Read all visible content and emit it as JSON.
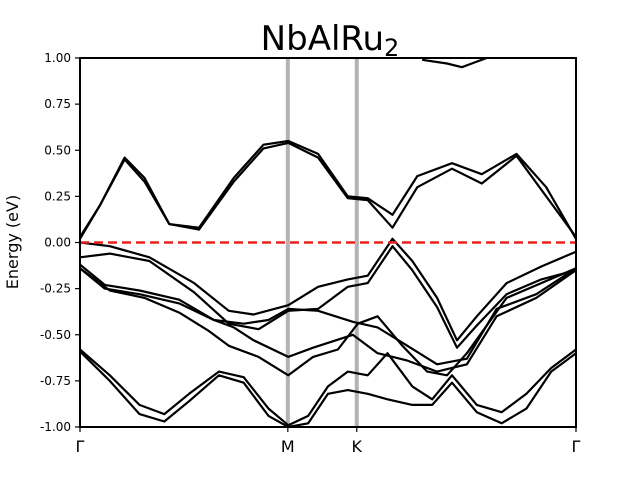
{
  "chart_data": {
    "type": "line",
    "title": "NbAlRu",
    "title_subscript": "2",
    "ylabel": "Energy (eV)",
    "xlabel": "",
    "ylim": [
      -1.0,
      1.0
    ],
    "xlim": [
      0.0,
      1.0
    ],
    "yticks": [
      "1.00",
      "0.75",
      "0.50",
      "0.25",
      "0.00",
      "-0.25",
      "-0.50",
      "-0.75",
      "-1.00"
    ],
    "ytick_values": [
      1.0,
      0.75,
      0.5,
      0.25,
      0.0,
      -0.25,
      -0.5,
      -0.75,
      -1.0
    ],
    "kpoints": [
      {
        "label": "Γ",
        "x": 0.0
      },
      {
        "label": "M",
        "x": 0.419
      },
      {
        "label": "K",
        "x": 0.558
      },
      {
        "label": "Γ",
        "x": 1.0
      }
    ],
    "grid": false,
    "fermi_level": {
      "value": 0.0,
      "color": "#e8211c",
      "style": "dashed"
    },
    "kpoint_line_color": "#b3b3b3",
    "band_color": "#000000",
    "bands": [
      {
        "name": "",
        "points": [
          [
            0,
            0.02
          ],
          [
            0.04,
            0.2
          ],
          [
            0.09,
            0.46
          ],
          [
            0.13,
            0.35
          ],
          [
            0.18,
            0.1
          ],
          [
            0.24,
            0.08
          ],
          [
            0.31,
            0.35
          ],
          [
            0.37,
            0.53
          ],
          [
            0.42,
            0.55
          ],
          [
            0.48,
            0.48
          ],
          [
            0.54,
            0.25
          ],
          [
            0.58,
            0.24
          ],
          [
            0.63,
            0.15
          ],
          [
            0.68,
            0.36
          ],
          [
            0.75,
            0.43
          ],
          [
            0.81,
            0.37
          ],
          [
            0.88,
            0.48
          ],
          [
            0.94,
            0.3
          ],
          [
            1,
            0.02
          ]
        ]
      },
      {
        "name": "",
        "points": [
          [
            0,
            0.03
          ],
          [
            0.04,
            0.2
          ],
          [
            0.09,
            0.45
          ],
          [
            0.13,
            0.33
          ],
          [
            0.18,
            0.1
          ],
          [
            0.24,
            0.07
          ],
          [
            0.31,
            0.33
          ],
          [
            0.37,
            0.51
          ],
          [
            0.42,
            0.54
          ],
          [
            0.48,
            0.46
          ],
          [
            0.54,
            0.24
          ],
          [
            0.58,
            0.23
          ],
          [
            0.63,
            0.08
          ],
          [
            0.68,
            0.3
          ],
          [
            0.75,
            0.4
          ],
          [
            0.81,
            0.32
          ],
          [
            0.88,
            0.47
          ],
          [
            0.94,
            0.25
          ],
          [
            1,
            0.03
          ]
        ]
      },
      {
        "name": "",
        "points": [
          [
            0,
            0.0
          ],
          [
            0.06,
            -0.02
          ],
          [
            0.14,
            -0.08
          ],
          [
            0.23,
            -0.22
          ],
          [
            0.3,
            -0.37
          ],
          [
            0.35,
            -0.39
          ],
          [
            0.42,
            -0.34
          ],
          [
            0.48,
            -0.24
          ],
          [
            0.54,
            -0.2
          ],
          [
            0.58,
            -0.18
          ],
          [
            0.63,
            0.02
          ],
          [
            0.67,
            -0.1
          ],
          [
            0.72,
            -0.3
          ],
          [
            0.76,
            -0.53
          ],
          [
            0.8,
            -0.4
          ],
          [
            0.86,
            -0.22
          ],
          [
            0.93,
            -0.13
          ],
          [
            1,
            -0.05
          ]
        ]
      },
      {
        "name": "",
        "points": [
          [
            0,
            -0.08
          ],
          [
            0.06,
            -0.06
          ],
          [
            0.14,
            -0.1
          ],
          [
            0.23,
            -0.27
          ],
          [
            0.3,
            -0.44
          ],
          [
            0.36,
            -0.47
          ],
          [
            0.42,
            -0.37
          ],
          [
            0.48,
            -0.36
          ],
          [
            0.54,
            -0.24
          ],
          [
            0.58,
            -0.22
          ],
          [
            0.63,
            -0.02
          ],
          [
            0.67,
            -0.15
          ],
          [
            0.72,
            -0.35
          ],
          [
            0.76,
            -0.57
          ],
          [
            0.8,
            -0.45
          ],
          [
            0.86,
            -0.28
          ],
          [
            0.93,
            -0.2
          ],
          [
            1,
            -0.15
          ]
        ]
      },
      {
        "name": "",
        "points": [
          [
            0,
            -0.14
          ],
          [
            0.05,
            -0.25
          ],
          [
            0.12,
            -0.28
          ],
          [
            0.2,
            -0.33
          ],
          [
            0.27,
            -0.42
          ],
          [
            0.33,
            -0.44
          ],
          [
            0.38,
            -0.42
          ],
          [
            0.42,
            -0.36
          ],
          [
            0.48,
            -0.37
          ],
          [
            0.55,
            -0.43
          ],
          [
            0.6,
            -0.46
          ],
          [
            0.66,
            -0.56
          ],
          [
            0.72,
            -0.66
          ],
          [
            0.78,
            -0.63
          ],
          [
            0.84,
            -0.36
          ],
          [
            0.92,
            -0.28
          ],
          [
            1,
            -0.14
          ]
        ]
      },
      {
        "name": "",
        "points": [
          [
            0,
            -0.12
          ],
          [
            0.05,
            -0.23
          ],
          [
            0.12,
            -0.26
          ],
          [
            0.2,
            -0.31
          ],
          [
            0.27,
            -0.42
          ],
          [
            0.31,
            -0.46
          ],
          [
            0.35,
            -0.53
          ],
          [
            0.42,
            -0.62
          ],
          [
            0.47,
            -0.57
          ],
          [
            0.55,
            -0.5
          ],
          [
            0.6,
            -0.6
          ],
          [
            0.66,
            -0.64
          ],
          [
            0.72,
            -0.7
          ],
          [
            0.78,
            -0.66
          ],
          [
            0.84,
            -0.4
          ],
          [
            0.92,
            -0.3
          ],
          [
            1,
            -0.15
          ]
        ]
      },
      {
        "name": "",
        "points": [
          [
            0,
            -0.14
          ],
          [
            0.06,
            -0.26
          ],
          [
            0.13,
            -0.3
          ],
          [
            0.2,
            -0.38
          ],
          [
            0.26,
            -0.48
          ],
          [
            0.3,
            -0.56
          ],
          [
            0.36,
            -0.62
          ],
          [
            0.42,
            -0.72
          ],
          [
            0.47,
            -0.62
          ],
          [
            0.52,
            -0.58
          ],
          [
            0.56,
            -0.44
          ],
          [
            0.6,
            -0.4
          ],
          [
            0.65,
            -0.56
          ],
          [
            0.7,
            -0.7
          ],
          [
            0.74,
            -0.72
          ],
          [
            0.78,
            -0.6
          ],
          [
            0.86,
            -0.3
          ],
          [
            1,
            -0.14
          ]
        ]
      },
      {
        "name": "",
        "points": [
          [
            0,
            -0.58
          ],
          [
            0.06,
            -0.72
          ],
          [
            0.12,
            -0.88
          ],
          [
            0.17,
            -0.93
          ],
          [
            0.22,
            -0.82
          ],
          [
            0.28,
            -0.7
          ],
          [
            0.33,
            -0.73
          ],
          [
            0.38,
            -0.9
          ],
          [
            0.42,
            -0.99
          ],
          [
            0.46,
            -0.94
          ],
          [
            0.5,
            -0.78
          ],
          [
            0.54,
            -0.7
          ],
          [
            0.58,
            -0.72
          ],
          [
            0.62,
            -0.6
          ],
          [
            0.67,
            -0.78
          ],
          [
            0.71,
            -0.85
          ],
          [
            0.75,
            -0.72
          ],
          [
            0.8,
            -0.88
          ],
          [
            0.85,
            -0.92
          ],
          [
            0.9,
            -0.82
          ],
          [
            0.95,
            -0.68
          ],
          [
            1,
            -0.58
          ]
        ]
      },
      {
        "name": "",
        "points": [
          [
            0,
            -0.59
          ],
          [
            0.06,
            -0.75
          ],
          [
            0.12,
            -0.93
          ],
          [
            0.17,
            -0.97
          ],
          [
            0.22,
            -0.86
          ],
          [
            0.28,
            -0.72
          ],
          [
            0.33,
            -0.76
          ],
          [
            0.38,
            -0.94
          ],
          [
            0.42,
            -1.0
          ],
          [
            0.46,
            -0.98
          ],
          [
            0.5,
            -0.82
          ],
          [
            0.54,
            -0.8
          ],
          [
            0.58,
            -0.82
          ],
          [
            0.62,
            -0.85
          ],
          [
            0.67,
            -0.88
          ],
          [
            0.71,
            -0.88
          ],
          [
            0.75,
            -0.76
          ],
          [
            0.8,
            -0.92
          ],
          [
            0.85,
            -0.98
          ],
          [
            0.9,
            -0.9
          ],
          [
            0.95,
            -0.7
          ],
          [
            1,
            -0.6
          ]
        ]
      },
      {
        "name": "",
        "points": [
          [
            0.69,
            0.99
          ],
          [
            0.74,
            0.97
          ],
          [
            0.77,
            0.95
          ],
          [
            0.79,
            0.97
          ],
          [
            0.82,
            1.0
          ]
        ]
      }
    ]
  }
}
